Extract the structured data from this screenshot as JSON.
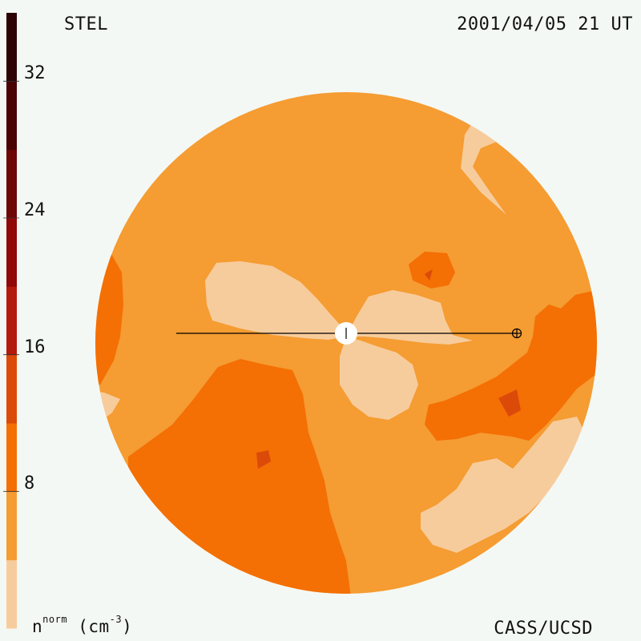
{
  "header": {
    "instrument": "STEL",
    "timestamp": "2001/04/05 21 UT"
  },
  "footer": {
    "credit": "CASS/UCSD",
    "quantity": "n",
    "quantity_superscript": "norm",
    "unit_open": "(cm",
    "unit_exponent": "-3",
    "unit_close": ")"
  },
  "colorbar": {
    "min": 0,
    "max": 36,
    "step": 4,
    "tick_labels": [
      "8",
      "16",
      "24",
      "32"
    ],
    "tick_values": [
      8,
      16,
      24,
      32
    ],
    "bands": [
      {
        "from": 0,
        "to": 4,
        "color": "#f7cc9c"
      },
      {
        "from": 4,
        "to": 8,
        "color": "#f59c32"
      },
      {
        "from": 8,
        "to": 12,
        "color": "#f46f04"
      },
      {
        "from": 12,
        "to": 16,
        "color": "#dc4a0a"
      },
      {
        "from": 16,
        "to": 20,
        "color": "#b41a0c"
      },
      {
        "from": 20,
        "to": 24,
        "color": "#900808"
      },
      {
        "from": 24,
        "to": 28,
        "color": "#6e0606"
      },
      {
        "from": 28,
        "to": 32,
        "color": "#4a0404"
      },
      {
        "from": 32,
        "to": 36,
        "color": "#2c0202"
      }
    ]
  },
  "map": {
    "background_level_color": "#f59c32",
    "sun_color": "#ffffff",
    "line_color": "#000000"
  }
}
